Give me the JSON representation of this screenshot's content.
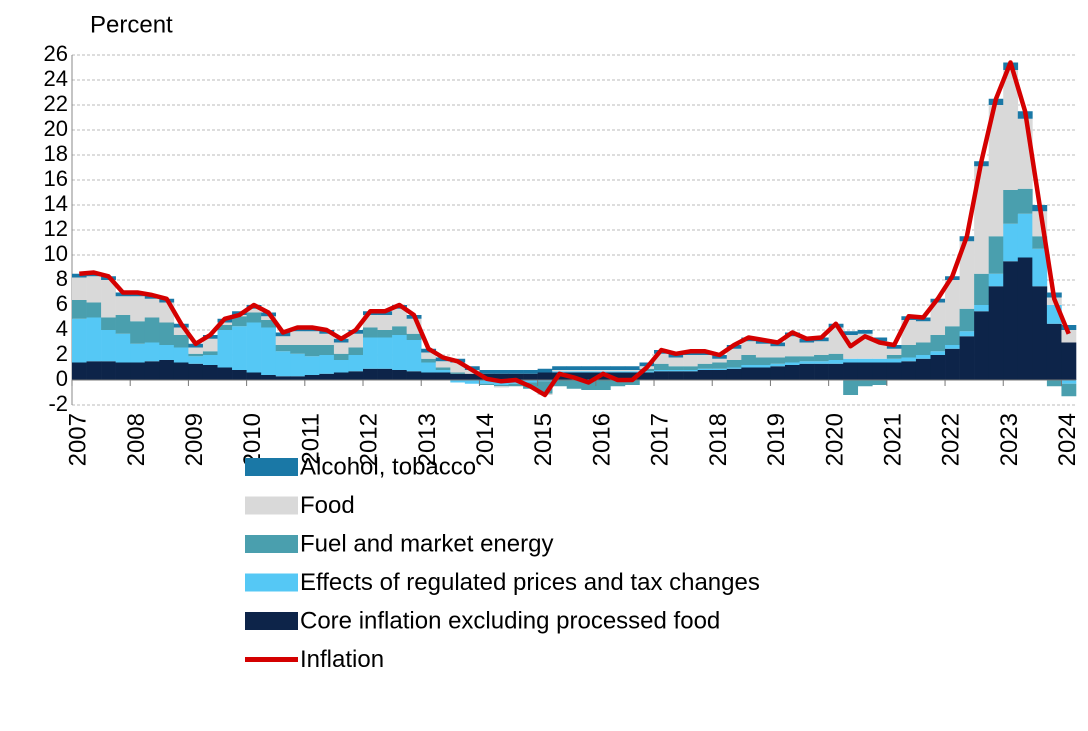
{
  "chart_data": {
    "type": "bar",
    "stacked": true,
    "y_label": "Percent",
    "categories": [
      "2007",
      null,
      null,
      null,
      "2008",
      null,
      null,
      null,
      "2009",
      null,
      null,
      null,
      "2010",
      null,
      null,
      null,
      "2011",
      null,
      null,
      null,
      "2012",
      null,
      null,
      null,
      "2013",
      null,
      null,
      null,
      "2014",
      null,
      null,
      null,
      "2015",
      null,
      null,
      null,
      "2016",
      null,
      null,
      null,
      "2017",
      null,
      null,
      null,
      "2018",
      null,
      null,
      null,
      "2019",
      null,
      null,
      null,
      "2020",
      null,
      null,
      null,
      "2021",
      null,
      null,
      null,
      "2022",
      null,
      null,
      null,
      "2023",
      null,
      null,
      null,
      "2024"
    ],
    "ylim": [
      -2,
      26
    ],
    "yticks": [
      -2,
      0,
      2,
      4,
      6,
      8,
      10,
      12,
      14,
      16,
      18,
      20,
      22,
      24,
      26
    ],
    "grid": true,
    "series": [
      {
        "name": "Alcohol, tobacco",
        "color": "#1a78a6",
        "values": [
          0.3,
          0.3,
          0.3,
          0.3,
          0.3,
          0.3,
          0.3,
          0.3,
          0.3,
          0.3,
          0.3,
          0.3,
          0.3,
          0.3,
          0.3,
          0.3,
          0.3,
          0.3,
          0.3,
          0.3,
          0.3,
          0.3,
          0.3,
          0.3,
          0.3,
          0.3,
          0.3,
          0.3,
          0.3,
          0.3,
          0.3,
          0.3,
          0.3,
          0.3,
          0.3,
          0.3,
          0.3,
          0.3,
          0.3,
          0.3,
          0.3,
          0.3,
          0.3,
          0.3,
          0.3,
          0.3,
          0.3,
          0.3,
          0.3,
          0.3,
          0.3,
          0.3,
          0.3,
          0.3,
          0.3,
          0.3,
          0.3,
          0.3,
          0.3,
          0.3,
          0.3,
          0.4,
          0.4,
          0.5,
          0.6,
          0.6,
          0.5,
          0.4,
          0.4
        ]
      },
      {
        "name": "Food",
        "color": "#d9d9d9",
        "values": [
          1.8,
          2.1,
          3.0,
          1.5,
          2.0,
          1.5,
          1.6,
          0.6,
          0.5,
          1.0,
          0.2,
          0.1,
          0.3,
          0.3,
          0.7,
          1.1,
          1.1,
          0.9,
          0.9,
          1.1,
          1.0,
          1.2,
          1.4,
          1.2,
          0.5,
          0.5,
          0.8,
          0.3,
          0.0,
          -0.1,
          0.0,
          0.0,
          -0.1,
          0.1,
          0.1,
          0.1,
          0.1,
          0.1,
          0.1,
          0.2,
          0.8,
          0.7,
          0.9,
          0.7,
          0.3,
          0.9,
          1.1,
          1.1,
          0.9,
          1.6,
          1.1,
          1.1,
          2.1,
          1.9,
          2.0,
          1.4,
          0.5,
          2.0,
          1.7,
          2.6,
          3.7,
          5.4,
          8.6,
          10.5,
          9.6,
          5.6,
          2.0,
          0.6,
          1.0
        ]
      },
      {
        "name": "Fuel and market energy",
        "color": "#4a9fae",
        "values": [
          1.5,
          1.2,
          1.0,
          1.5,
          1.8,
          2.0,
          1.8,
          1.0,
          0.2,
          0.3,
          0.4,
          0.8,
          0.8,
          0.6,
          0.5,
          0.7,
          0.9,
          0.8,
          0.5,
          0.6,
          0.8,
          0.6,
          0.7,
          0.5,
          0.3,
          0.2,
          0.1,
          0.0,
          -0.1,
          -0.1,
          -0.2,
          -0.5,
          -1.0,
          -0.5,
          -0.7,
          -0.8,
          -0.8,
          -0.5,
          -0.4,
          0.2,
          0.5,
          0.3,
          0.3,
          0.4,
          0.5,
          0.6,
          0.8,
          0.6,
          0.5,
          0.5,
          0.4,
          0.5,
          0.5,
          -1.2,
          -0.5,
          -0.4,
          0.3,
          1.0,
          1.0,
          1.3,
          1.5,
          1.8,
          2.5,
          3.0,
          2.7,
          2.0,
          1.0,
          -0.5,
          -1.0
        ]
      },
      {
        "name": "Effects of regulated prices and tax changes",
        "color": "#55c8f5",
        "values": [
          3.5,
          3.5,
          2.5,
          2.3,
          1.5,
          1.5,
          1.2,
          1.2,
          0.6,
          0.8,
          3.0,
          3.5,
          4.0,
          3.8,
          2.0,
          1.8,
          1.5,
          1.5,
          1.0,
          1.3,
          2.5,
          2.5,
          2.8,
          2.5,
          0.8,
          0.2,
          -0.2,
          -0.3,
          -0.3,
          -0.4,
          -0.3,
          -0.2,
          -0.1,
          0.1,
          0.1,
          0.1,
          0.1,
          0.1,
          0.1,
          0.1,
          0.1,
          0.1,
          0.1,
          0.1,
          0.1,
          0.1,
          0.2,
          0.2,
          0.2,
          0.2,
          0.2,
          0.2,
          0.3,
          0.3,
          0.3,
          0.3,
          0.3,
          0.3,
          0.3,
          0.3,
          0.3,
          0.4,
          0.5,
          1.0,
          3.0,
          3.5,
          3.0,
          1.5,
          -0.3
        ]
      },
      {
        "name": "Core inflation excluding processed food",
        "color": "#0d2449",
        "values": [
          1.4,
          1.5,
          1.5,
          1.4,
          1.4,
          1.5,
          1.6,
          1.4,
          1.3,
          1.2,
          1.0,
          0.8,
          0.6,
          0.4,
          0.3,
          0.3,
          0.4,
          0.5,
          0.6,
          0.7,
          0.9,
          0.9,
          0.8,
          0.7,
          0.6,
          0.6,
          0.5,
          0.5,
          0.5,
          0.5,
          0.5,
          0.5,
          0.6,
          0.6,
          0.6,
          0.6,
          0.6,
          0.6,
          0.6,
          0.6,
          0.7,
          0.7,
          0.7,
          0.8,
          0.8,
          0.9,
          1.0,
          1.0,
          1.1,
          1.2,
          1.3,
          1.3,
          1.3,
          1.4,
          1.4,
          1.4,
          1.4,
          1.5,
          1.7,
          2.0,
          2.5,
          3.5,
          5.5,
          7.5,
          9.5,
          9.8,
          7.5,
          4.5,
          3.0
        ]
      },
      {
        "name": "Inflation",
        "color": "#d40000",
        "type": "line",
        "values": [
          8.5,
          8.6,
          8.3,
          7.0,
          7.0,
          6.8,
          6.5,
          4.5,
          2.9,
          3.6,
          4.9,
          5.2,
          6.0,
          5.4,
          3.8,
          4.2,
          4.2,
          4.0,
          3.3,
          4.0,
          5.5,
          5.5,
          6.0,
          5.2,
          2.5,
          1.8,
          1.5,
          0.8,
          0.1,
          -0.1,
          0.0,
          -0.5,
          -1.2,
          0.5,
          0.2,
          -0.2,
          0.5,
          0.0,
          0.0,
          1.0,
          2.4,
          2.1,
          2.3,
          2.3,
          2.0,
          2.8,
          3.4,
          3.2,
          3.0,
          3.8,
          3.3,
          3.4,
          4.5,
          2.7,
          3.5,
          3.0,
          2.8,
          5.1,
          5.0,
          6.5,
          8.3,
          11.5,
          17.5,
          22.5,
          25.4,
          21.5,
          14.0,
          6.5,
          3.7
        ]
      }
    ]
  }
}
